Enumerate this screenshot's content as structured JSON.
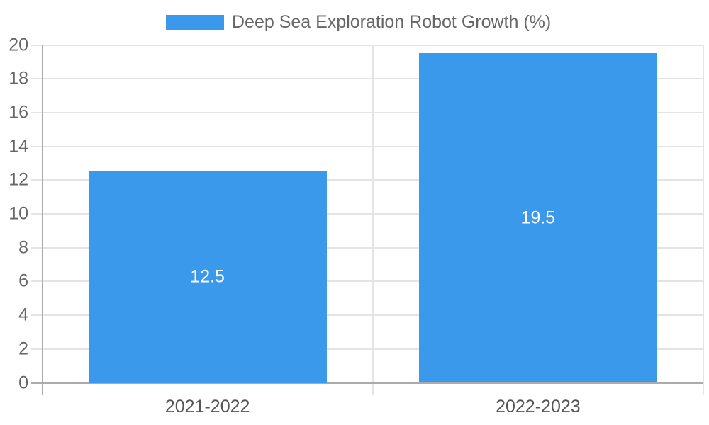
{
  "chart_data": {
    "type": "bar",
    "title": "Deep Sea Exploration Robot Growth (%)",
    "categories": [
      "2021-2022",
      "2022-2023"
    ],
    "series": [
      {
        "name": "Deep Sea Exploration Robot Growth (%)",
        "values": [
          12.5,
          19.5
        ],
        "data_labels": [
          "12.5",
          "19.5"
        ]
      }
    ],
    "xlabel": "",
    "ylabel": "",
    "ylim": [
      0,
      20
    ],
    "ytick_step": 2,
    "yticks": [
      0,
      2,
      4,
      6,
      8,
      10,
      12,
      14,
      16,
      18,
      20
    ],
    "grid": true,
    "legend_position": "top-center",
    "colors": {
      "bar": "#3b99ec",
      "axis_line": "#ababab",
      "gridline": "#e4e4e4",
      "ytick_text": "#666666",
      "xtick_text": "#555555",
      "legend_text": "#666666",
      "data_label_text": "#ffffff",
      "background": "#ffffff"
    }
  },
  "legend": {
    "label": "Deep Sea Exploration Robot Growth (%)",
    "swatch_color": "#3b99ec"
  }
}
